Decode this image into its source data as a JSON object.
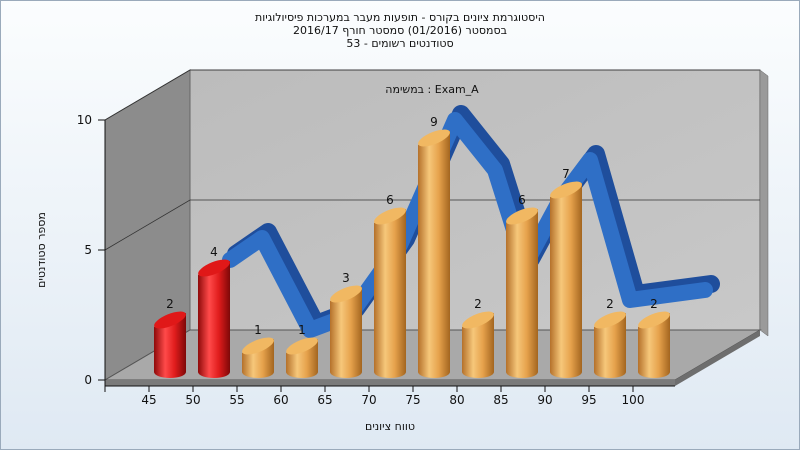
{
  "chart_data": {
    "type": "bar",
    "title": [
      "היסטוגרמת ציונים בקורס - תופעות מעבר במערכות פיסיולוגיות",
      "בסמסטר  (01/2016)  סמסטר חורף 2016/17",
      "סטודנטים רשומים - 53"
    ],
    "annotation": "Exam_A : במשימה",
    "xlabel": "טווח ציונים",
    "ylabel": "מספר סטודנטים",
    "x_tick_labels": [
      "45",
      "50",
      "55",
      "60",
      "65",
      "70",
      "75",
      "80",
      "85",
      "90",
      "95",
      "100"
    ],
    "categories": [
      "45",
      "50",
      "55",
      "60",
      "65",
      "70",
      "75",
      "80",
      "85",
      "90",
      "95",
      "100"
    ],
    "values": [
      2,
      4,
      1,
      1,
      3,
      6,
      9,
      2,
      6,
      7,
      2,
      2
    ],
    "bar_colors": [
      "#d81818",
      "#d81818",
      "#e8a040",
      "#e8a040",
      "#e8a040",
      "#e8a040",
      "#e8a040",
      "#e8a040",
      "#e8a040",
      "#e8a040",
      "#e8a040",
      "#e8a040"
    ],
    "curve_color": "#2f6fc6",
    "y_tick_labels": [
      "0",
      "5",
      "10"
    ],
    "ylim": [
      0,
      10
    ],
    "legend": "none"
  }
}
